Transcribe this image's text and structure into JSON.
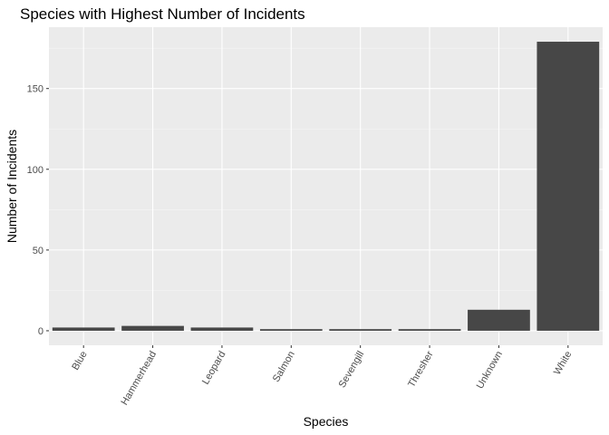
{
  "chart_data": {
    "type": "bar",
    "title": "Species with Highest Number of Incidents",
    "xlabel": "Species",
    "ylabel": "Number of Incidents",
    "categories": [
      "Blue",
      "Hammerhead",
      "Leopard",
      "Salmon",
      "Sevengill",
      "Thresher",
      "Unknown",
      "White"
    ],
    "values": [
      2,
      3,
      2,
      1,
      1,
      1,
      13,
      179
    ],
    "ylim": [
      -9,
      188
    ],
    "yticks": [
      0,
      50,
      100,
      150
    ],
    "grid": true,
    "colors": {
      "bar": "#474747",
      "panel": "#ebebeb",
      "grid_major": "#ffffff",
      "grid_minor": "#f5f5f5"
    }
  }
}
